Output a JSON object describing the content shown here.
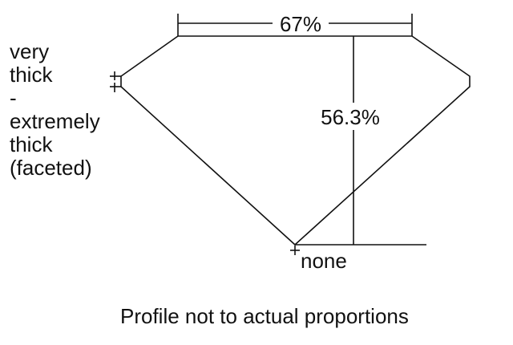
{
  "diagram": {
    "table_percent_label": "67%",
    "depth_percent_label": "56.3%",
    "girdle_label_lines": [
      "very",
      "thick",
      "-",
      "extremely",
      "thick",
      "(faceted)"
    ],
    "culet_label": "none",
    "caption": "Profile not to actual proportions",
    "line_color": "#111111",
    "background": "#ffffff"
  }
}
